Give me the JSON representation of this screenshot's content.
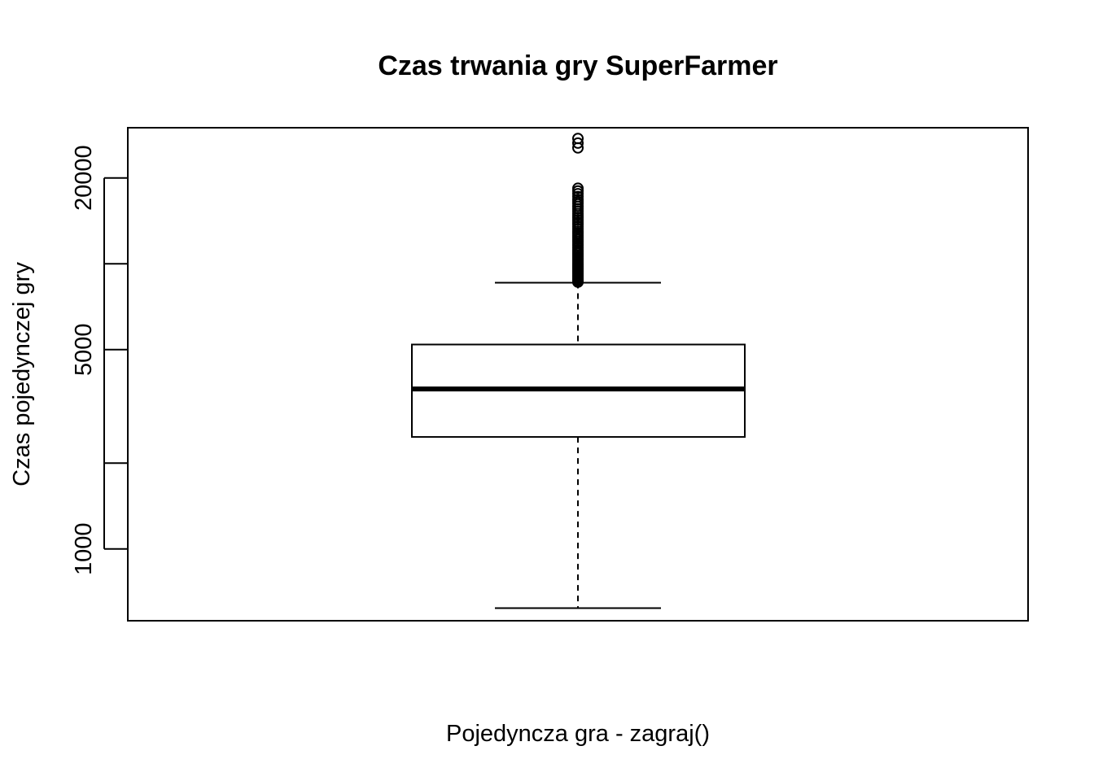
{
  "chart_data": {
    "type": "boxplot",
    "title": "Czas trwania gry SuperFarmer",
    "xlabel": "Pojedyncza gra - zagraj()",
    "ylabel": "Czas pojedynczej gry",
    "y_scale": "log",
    "ylim": [
      560,
      30000
    ],
    "y_ticks": [
      {
        "value": 1000,
        "label": "1000"
      },
      {
        "value": 2000,
        "label": ""
      },
      {
        "value": 5000,
        "label": "5000"
      },
      {
        "value": 10000,
        "label": ""
      },
      {
        "value": 20000,
        "label": "20000"
      }
    ],
    "grid": false,
    "legend": "none",
    "box": {
      "whisker_low": 620,
      "q1": 2470,
      "median": 3640,
      "q3": 5210,
      "whisker_high": 8580
    },
    "outliers": [
      8620,
      8700,
      8800,
      8900,
      9000,
      9100,
      9200,
      9300,
      9400,
      9500,
      9600,
      9700,
      9800,
      9900,
      10000,
      10150,
      10300,
      10450,
      10600,
      10750,
      10900,
      11050,
      11200,
      11400,
      11600,
      11800,
      12000,
      12200,
      12400,
      12600,
      12800,
      13000,
      13250,
      13500,
      13750,
      14000,
      14250,
      14500,
      14750,
      15000,
      15300,
      15600,
      15900,
      16200,
      16500,
      16800,
      17200,
      17600,
      18000,
      18400,
      25500,
      26500,
      27500
    ],
    "colors": {
      "stroke": "#000000",
      "background": "#ffffff"
    }
  }
}
